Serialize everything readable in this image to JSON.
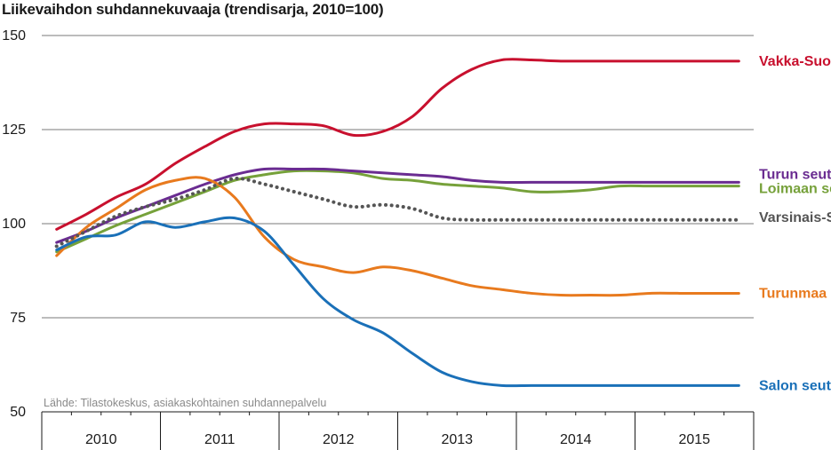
{
  "chart_data": {
    "type": "line",
    "title": "Liikevaihdon suhdannekuvaaja (trendisarja, 2010=100)",
    "source": "Lähde: Tilastokeskus, asiakaskohtainen suhdannepalvelu",
    "xlabel": "",
    "ylabel": "",
    "ylim": [
      50,
      150
    ],
    "yticks": [
      50,
      75,
      100,
      125,
      150
    ],
    "grid": true,
    "x_categories": [
      "2010",
      "2011",
      "2012",
      "2013",
      "2014",
      "2015"
    ],
    "x_points_per_year": 4,
    "x": [
      "2010Q1",
      "2010Q2",
      "2010Q3",
      "2010Q4",
      "2011Q1",
      "2011Q2",
      "2011Q3",
      "2011Q4",
      "2012Q1",
      "2012Q2",
      "2012Q3",
      "2012Q4",
      "2013Q1",
      "2013Q2",
      "2013Q3",
      "2013Q4",
      "2014Q1",
      "2014Q2",
      "2014Q3",
      "2014Q4",
      "2015Q1",
      "2015Q2",
      "2015Q3",
      "2015Q4"
    ],
    "series": [
      {
        "name": "Vakka-Suomi",
        "color": "#c8102e",
        "style": "solid",
        "values": [
          98.5,
          102.5,
          107,
          110.5,
          116,
          120.5,
          124.5,
          126.5,
          126.5,
          126,
          123.5,
          124.5,
          128.5,
          136,
          141,
          143.5,
          143.5,
          143.2,
          143.2,
          143.2,
          143.2,
          143.2,
          143.2,
          143.2
        ]
      },
      {
        "name": "Turun seutu",
        "color": "#6a2c91",
        "style": "solid",
        "values": [
          95,
          98,
          101.5,
          104.5,
          107.5,
          110.5,
          113,
          114.5,
          114.5,
          114.5,
          114,
          113.5,
          113,
          112.5,
          111.5,
          111,
          111,
          111,
          111,
          111,
          111,
          111,
          111,
          111
        ]
      },
      {
        "name": "Loimaan seutu",
        "color": "#76a13a",
        "style": "solid",
        "values": [
          92.5,
          96,
          99.5,
          102.5,
          105.5,
          108.5,
          111.5,
          113,
          114,
          114,
          113.5,
          112,
          111.5,
          110.5,
          110,
          109.5,
          108.5,
          108.5,
          109,
          110,
          110,
          110,
          110,
          110
        ]
      },
      {
        "name": "Varsinais-Suomi",
        "color": "#555555",
        "style": "dotted",
        "values": [
          94,
          98,
          102,
          104.5,
          106.5,
          109,
          112,
          110.5,
          108.5,
          106.5,
          104.5,
          105,
          104,
          101.5,
          101,
          101,
          101,
          101,
          101,
          101,
          101,
          101,
          101,
          101
        ]
      },
      {
        "name": "Turunmaa",
        "color": "#e87a1e",
        "style": "solid",
        "values": [
          91.5,
          99,
          104,
          109,
          111.5,
          112,
          107,
          96.5,
          90.5,
          88.5,
          87,
          88.5,
          87.5,
          85.5,
          83.5,
          82.5,
          81.5,
          81,
          81,
          81,
          81.5,
          81.5,
          81.5,
          81.5
        ]
      },
      {
        "name": "Salon seutu",
        "color": "#1a70b8",
        "style": "solid",
        "values": [
          93,
          96.5,
          97,
          100.5,
          99,
          100.5,
          101.5,
          98,
          89,
          80,
          74.5,
          71,
          65.5,
          60.5,
          58,
          57,
          57,
          57,
          57,
          57,
          57,
          57,
          57,
          57
        ]
      }
    ]
  }
}
